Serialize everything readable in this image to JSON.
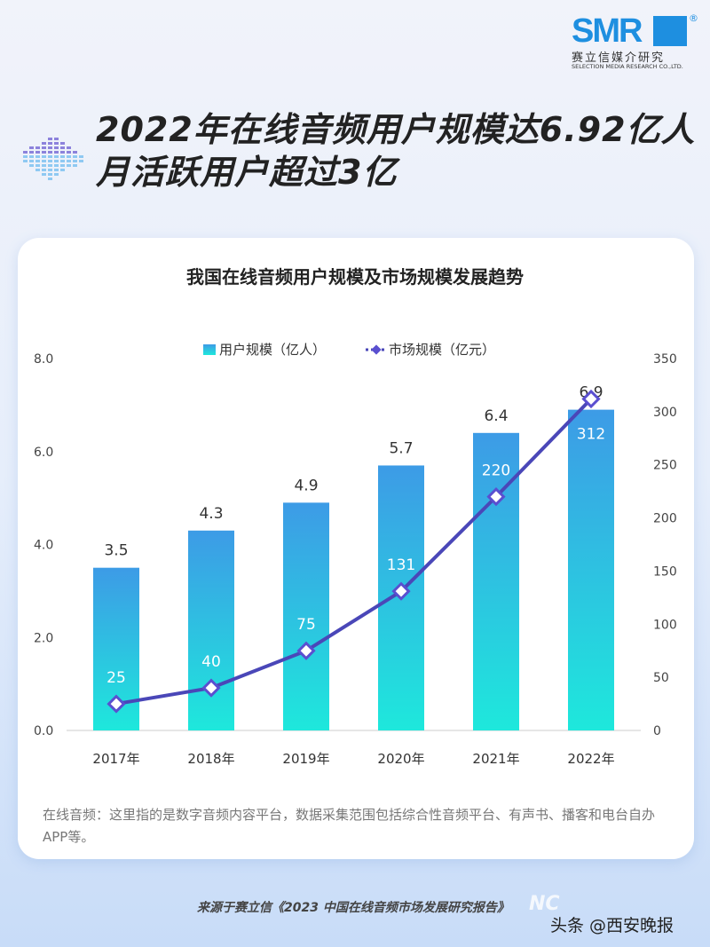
{
  "logo": {
    "mark": "SMR",
    "cn": "赛立信媒介研究",
    "en": "SELECTION MEDIA RESEARCH CO.,LTD.",
    "registered": "®"
  },
  "headline": {
    "line1": "2022年在线音频用户规模达6.92亿人",
    "line2": "月活跃用户超过3亿"
  },
  "chart_data": {
    "type": "bar+line",
    "title": "我国在线音频用户规模及市场规模发展趋势",
    "categories": [
      "2017年",
      "2018年",
      "2019年",
      "2020年",
      "2021年",
      "2022年"
    ],
    "series": [
      {
        "name": "用户规模（亿人）",
        "type": "bar",
        "axis": "left",
        "values": [
          3.5,
          4.3,
          4.9,
          5.7,
          6.4,
          6.9
        ],
        "labels": [
          "3.5",
          "4.3",
          "4.9",
          "5.7",
          "6.4",
          "6.9"
        ]
      },
      {
        "name": "市场规模（亿元）",
        "type": "line",
        "axis": "right",
        "values": [
          25,
          40,
          75,
          131,
          220,
          312
        ],
        "labels": [
          "25",
          "40",
          "75",
          "131",
          "220",
          "312"
        ]
      }
    ],
    "y_left": {
      "ylim": [
        0,
        8
      ],
      "ticks": [
        "0.0",
        "2.0",
        "4.0",
        "6.0",
        "8.0"
      ]
    },
    "y_right": {
      "ylim": [
        0,
        350
      ],
      "ticks": [
        "0",
        "50",
        "100",
        "150",
        "200",
        "250",
        "300",
        "350"
      ]
    },
    "legend": "top-center",
    "grid": false,
    "colors": {
      "bar_top": "#3d9be6",
      "bar_bottom": "#1ee8dc",
      "line": "#4a47b8",
      "marker": "#5a4fd0"
    }
  },
  "note": "在线音频：这里指的是数字音频内容平台，数据采集范围包括综合性音频平台、有声书、播客和电台自办APP等。",
  "source": "来源于赛立信《2023 中国在线音频市场发展研究报告》",
  "watermark": "头条 @西安晚报",
  "watermark_logo": "NC"
}
